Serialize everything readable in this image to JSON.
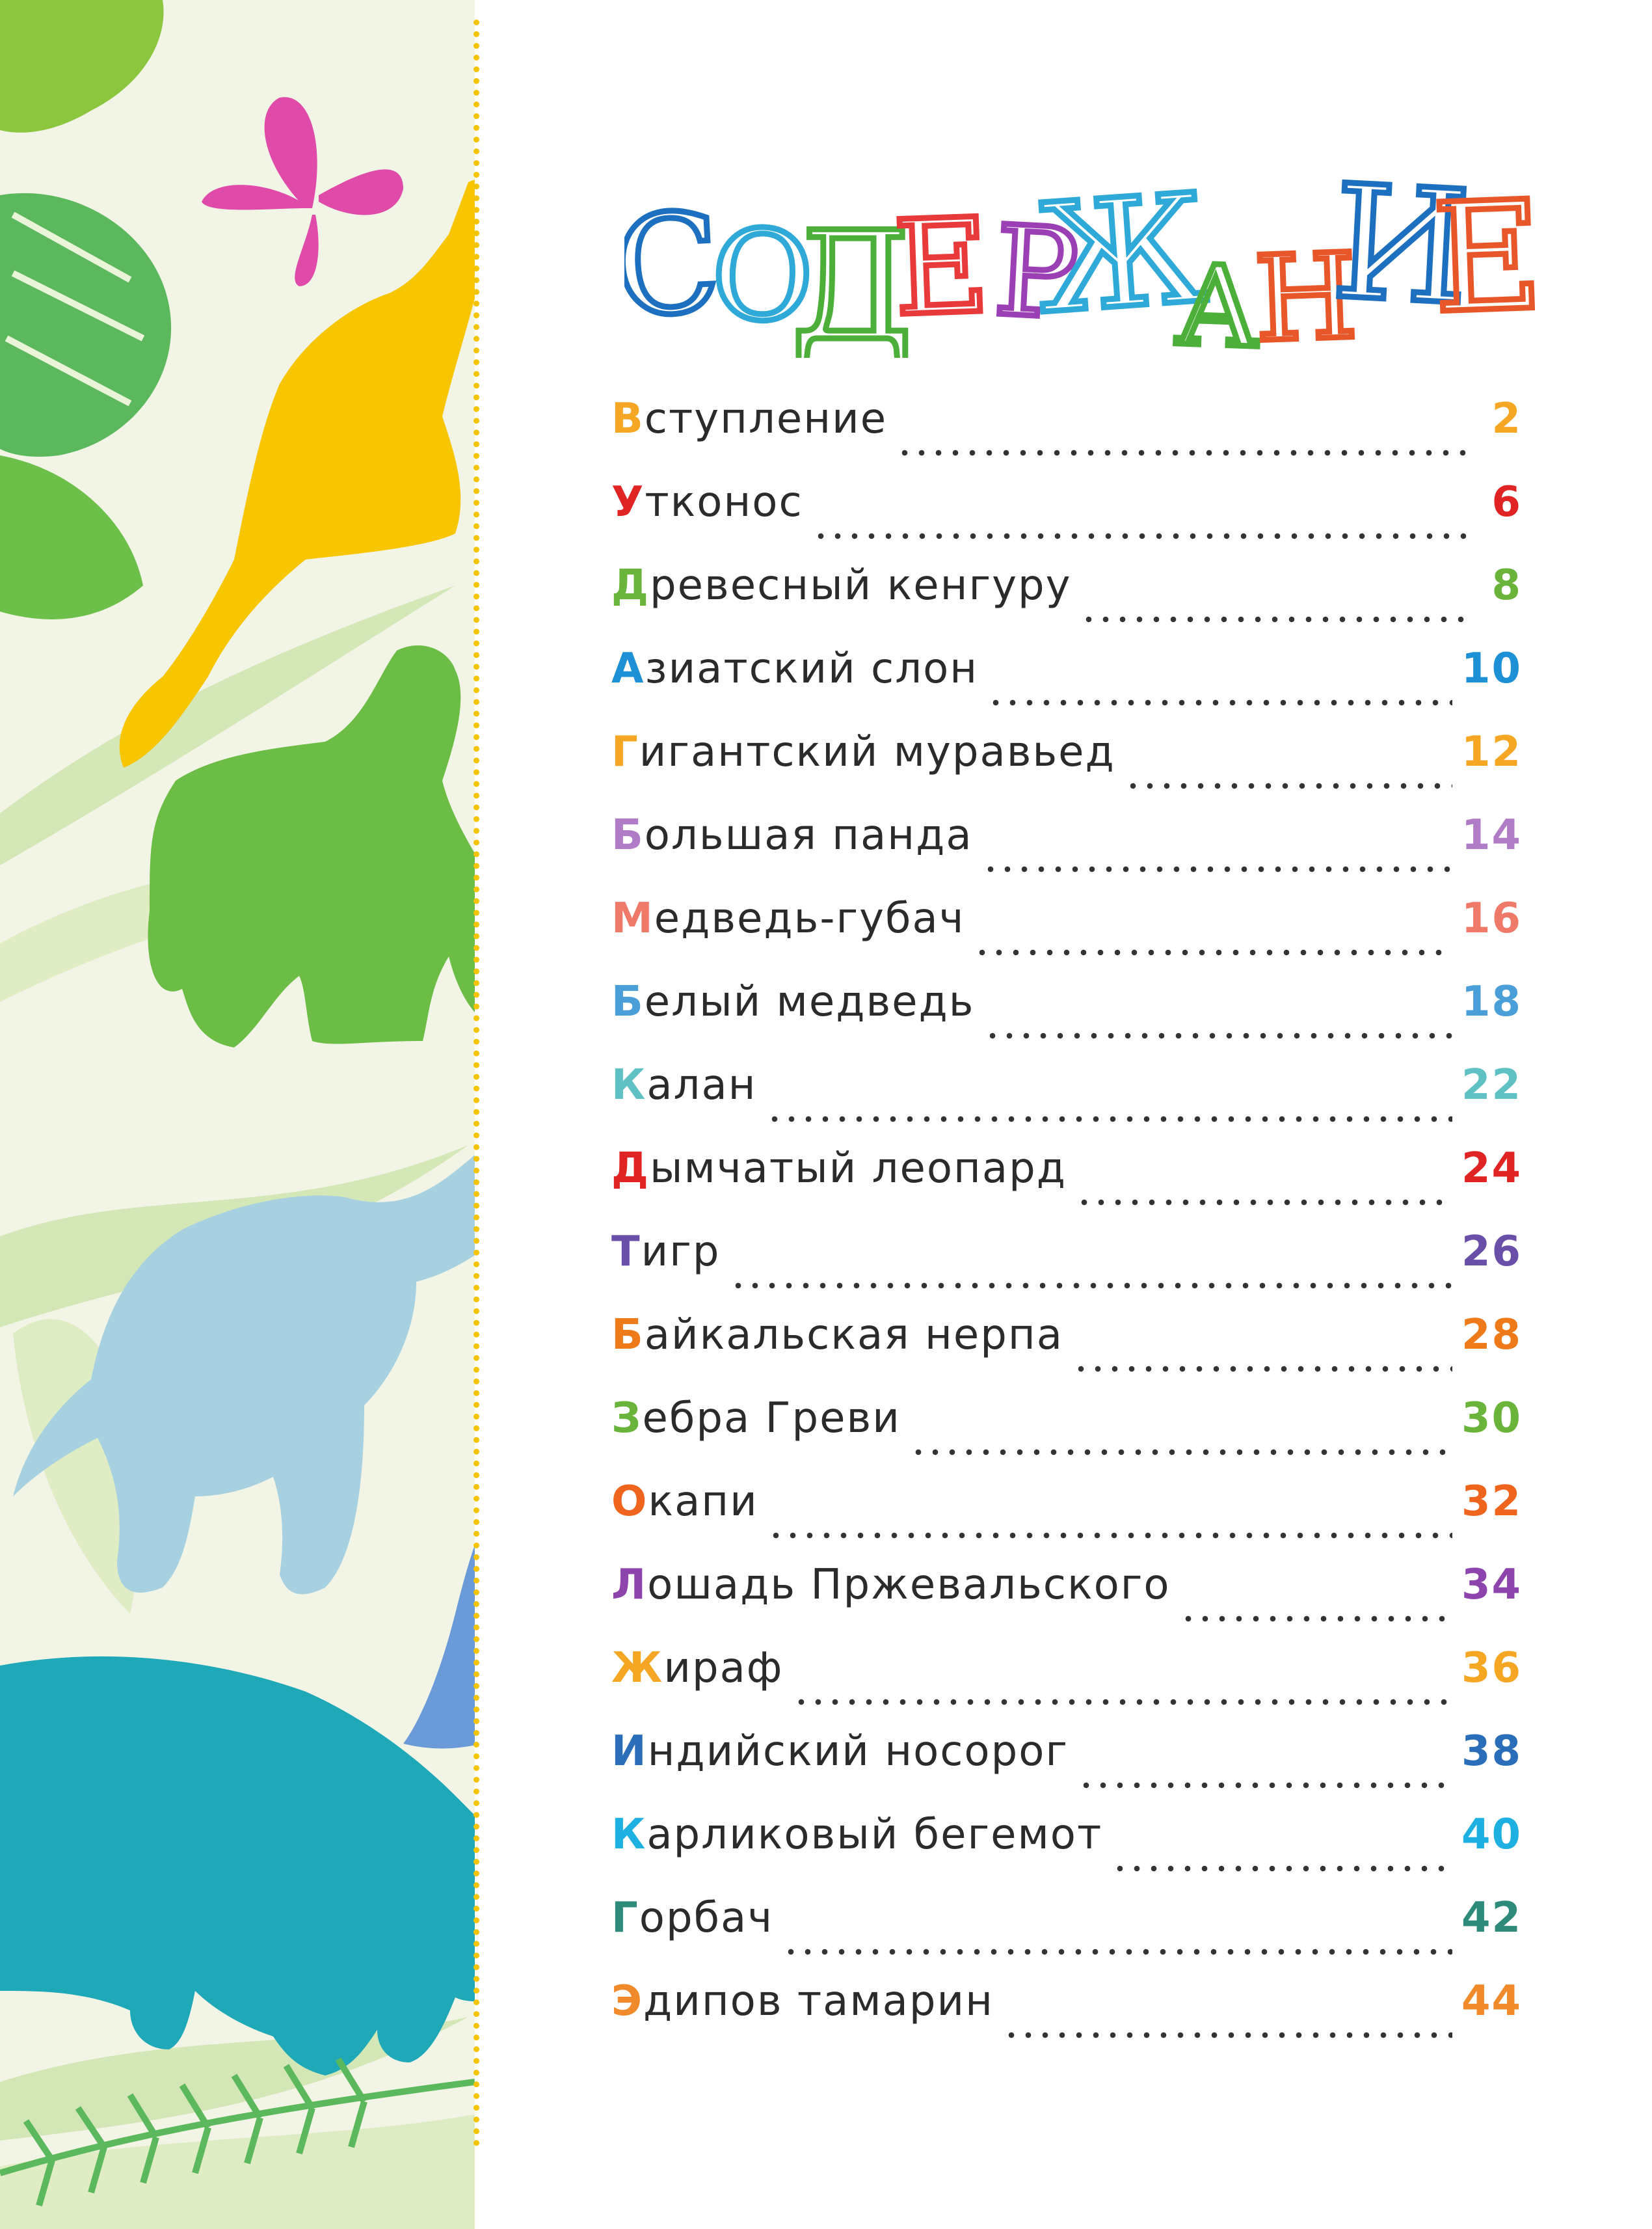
{
  "title": {
    "text": "СОДЕРЖАНИЕ",
    "letters": [
      {
        "char": "С",
        "color": "#1d6fc0"
      },
      {
        "char": "О",
        "color": "#2ea9d8"
      },
      {
        "char": "Д",
        "color": "#4caf3a"
      },
      {
        "char": "Е",
        "color": "#e83a3a"
      },
      {
        "char": "Р",
        "color": "#9b3fb5"
      },
      {
        "char": "Ж",
        "color": "#2ea9d8"
      },
      {
        "char": "А",
        "color": "#4caf3a"
      },
      {
        "char": "Н",
        "color": "#e8572a"
      },
      {
        "char": "И",
        "color": "#1d6fc0"
      },
      {
        "char": "Е",
        "color": "#e8572a"
      }
    ]
  },
  "entries": [
    {
      "initial": "В",
      "rest": "ступление",
      "page": "2",
      "color": "#f5a623"
    },
    {
      "initial": "У",
      "rest": "тконос",
      "page": "6",
      "color": "#e02424"
    },
    {
      "initial": "Д",
      "rest": "ревесный кенгуру",
      "page": "8",
      "color": "#6ab43c"
    },
    {
      "initial": "А",
      "rest": "зиатский слон",
      "page": "10",
      "color": "#1e90d6"
    },
    {
      "initial": "Г",
      "rest": "игантский муравьед",
      "page": "12",
      "color": "#f5a623"
    },
    {
      "initial": "Б",
      "rest": "ольшая панда",
      "page": "14",
      "color": "#b07cc6"
    },
    {
      "initial": "М",
      "rest": "едведь-губач",
      "page": "16",
      "color": "#f07a6a"
    },
    {
      "initial": "Б",
      "rest": "елый медведь",
      "page": "18",
      "color": "#4a9fd8"
    },
    {
      "initial": "К",
      "rest": "алан",
      "page": "22",
      "color": "#5fc1c4"
    },
    {
      "initial": "Д",
      "rest": "ымчатый леопард",
      "page": "24",
      "color": "#e02424"
    },
    {
      "initial": "Т",
      "rest": "игр",
      "page": "26",
      "color": "#6a4fa8"
    },
    {
      "initial": "Б",
      "rest": "айкальская нерпа",
      "page": "28",
      "color": "#ef7a1a"
    },
    {
      "initial": "З",
      "rest": "ебра Греви",
      "page": "30",
      "color": "#6ab43c"
    },
    {
      "initial": "О",
      "rest": "капи",
      "page": "32",
      "color": "#f0651e"
    },
    {
      "initial": "Л",
      "rest": "ошадь Пржевальского",
      "page": "34",
      "color": "#8e44ad"
    },
    {
      "initial": "Ж",
      "rest": "ираф",
      "page": "36",
      "color": "#f5a623"
    },
    {
      "initial": "И",
      "rest": "ндийский носорог",
      "page": "38",
      "color": "#2a6db8"
    },
    {
      "initial": "К",
      "rest": "арликовый бегемот",
      "page": "40",
      "color": "#1eb0e0"
    },
    {
      "initial": "Г",
      "rest": "орбач",
      "page": "42",
      "color": "#2e8b7a"
    },
    {
      "initial": "Э",
      "rest": "дипов тамарин",
      "page": "44",
      "color": "#f08a2a"
    }
  ],
  "illustration_animals": [
    "butterfly",
    "kangaroo",
    "bear",
    "elephant",
    "penguin",
    "hippo"
  ],
  "colors": {
    "panel_bg": "#f2f4e6",
    "border_dots": "#f5c400",
    "text": "#2b2b2b"
  }
}
